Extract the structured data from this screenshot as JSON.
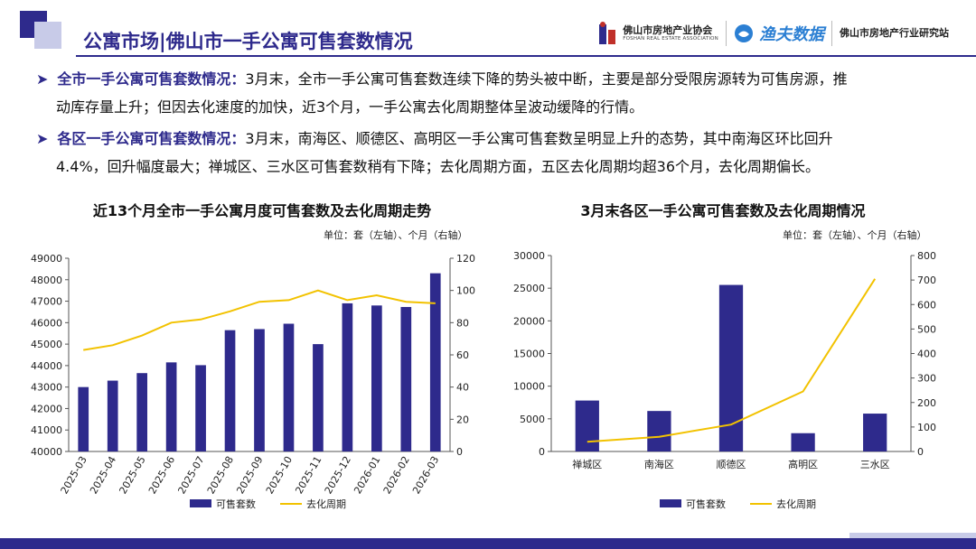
{
  "header": {
    "title": "公寓市场|佛山市一手公寓可售套数情况",
    "logo1_name": "佛山市房地产业协会",
    "logo1_sub": "FOSHAN REAL ESTATE ASSOCIATION",
    "logo2_name": "渔夫数据",
    "logo3_name": "佛山市房地产行业研究站"
  },
  "bullets": [
    {
      "label": "全市一手公寓可售套数情况：",
      "line1": "3月末，全市一手公寓可售套数连续下降的势头被中断，主要是部分受限房源转为可售房源，推",
      "line2": "动库存量上升；但因去化速度的加快，近3个月，一手公寓去化周期整体呈波动缓降的行情。"
    },
    {
      "label": "各区一手公寓可售套数情况：",
      "line1": "3月末，南海区、顺德区、高明区一手公寓可售套数呈明显上升的态势，其中南海区环比回升",
      "line2": "4.4%，回升幅度最大；禅城区、三水区可售套数稍有下降；去化周期方面，五区去化周期均超36个月，去化周期偏长。"
    }
  ],
  "colors": {
    "bar": "#2e2a8c",
    "line": "#f2c200",
    "accent": "#2e2a8c"
  },
  "chart_data": [
    {
      "type": "bar",
      "title": "近13个月全市一手公寓月度可售套数及去化周期走势",
      "unit_note": "单位：套（左轴）、个月（右轴）",
      "categories": [
        "2025-03",
        "2025-04",
        "2025-05",
        "2025-06",
        "2025-07",
        "2025-08",
        "2025-09",
        "2025-10",
        "2025-11",
        "2025-12",
        "2026-01",
        "2026-02",
        "2026-03"
      ],
      "series": [
        {
          "name": "可售套数",
          "type": "bar",
          "axis": "left",
          "values": [
            43000,
            43300,
            43650,
            44150,
            44020,
            45650,
            45700,
            45950,
            45000,
            46900,
            46800,
            46730,
            48300
          ]
        },
        {
          "name": "去化周期",
          "type": "line",
          "axis": "right",
          "values": [
            63,
            66,
            72,
            80,
            82,
            87,
            93,
            94,
            100,
            94,
            97,
            93,
            92
          ]
        }
      ],
      "y_left": {
        "min": 40000,
        "max": 49000,
        "step": 1000
      },
      "y_right": {
        "min": 0,
        "max": 120,
        "step": 20
      },
      "grid": false,
      "legend": "bottom"
    },
    {
      "type": "bar",
      "title": "3月末各区一手公寓可售套数及去化周期情况",
      "unit_note": "单位：套（左轴）、个月（右轴）",
      "categories": [
        "禅城区",
        "南海区",
        "顺德区",
        "高明区",
        "三水区"
      ],
      "series": [
        {
          "name": "可售套数",
          "type": "bar",
          "axis": "left",
          "values": [
            7800,
            6200,
            25500,
            2800,
            5800
          ]
        },
        {
          "name": "去化周期",
          "type": "line",
          "axis": "right",
          "values": [
            40,
            60,
            110,
            245,
            705
          ]
        }
      ],
      "y_left": {
        "min": 0,
        "max": 30000,
        "step": 5000
      },
      "y_right": {
        "min": 0,
        "max": 800,
        "step": 100
      },
      "grid": false,
      "legend": "bottom"
    }
  ]
}
